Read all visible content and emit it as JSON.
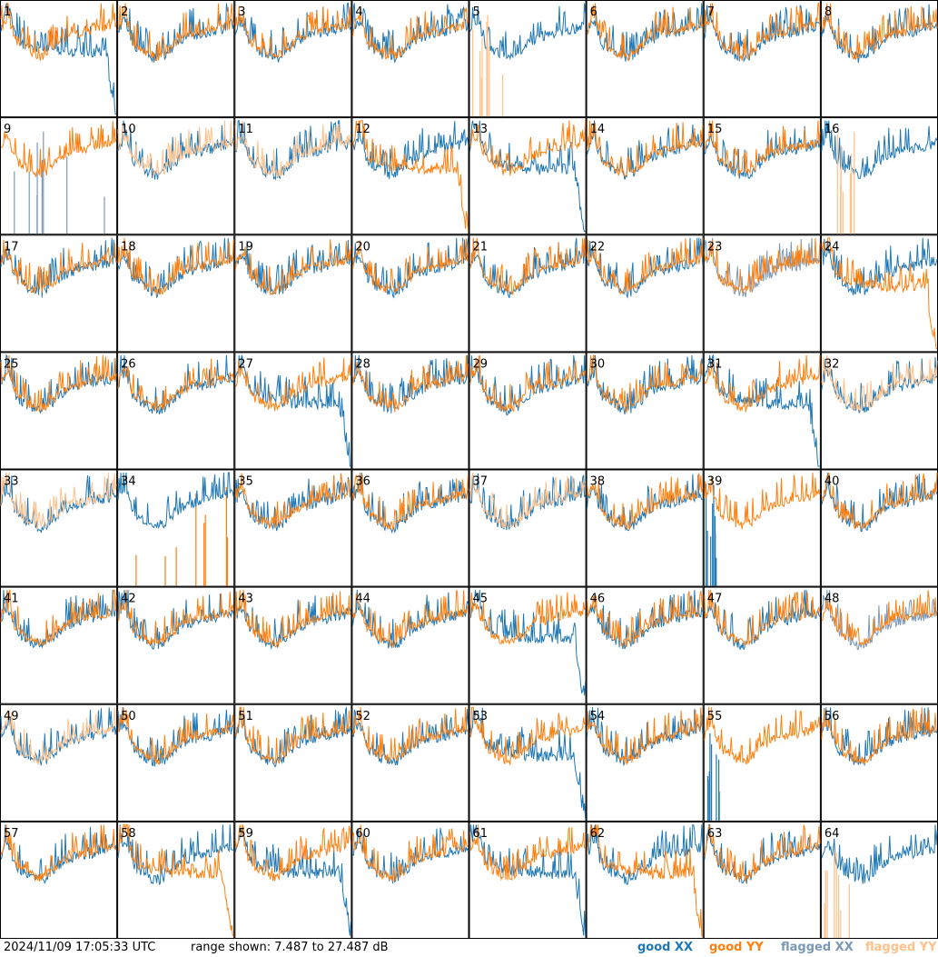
{
  "chart_data": {
    "type": "line",
    "grid": {
      "rows": 8,
      "cols": 8
    },
    "panels": [
      "1",
      "2",
      "3",
      "4",
      "5",
      "6",
      "7",
      "8",
      "9",
      "10",
      "11",
      "12",
      "13",
      "14",
      "15",
      "16",
      "17",
      "18",
      "19",
      "20",
      "21",
      "22",
      "23",
      "24",
      "25",
      "26",
      "27",
      "28",
      "29",
      "30",
      "31",
      "32",
      "33",
      "34",
      "35",
      "36",
      "37",
      "38",
      "39",
      "40",
      "41",
      "42",
      "43",
      "44",
      "45",
      "46",
      "47",
      "48",
      "49",
      "50",
      "51",
      "52",
      "53",
      "54",
      "55",
      "56",
      "57",
      "58",
      "59",
      "60",
      "61",
      "62",
      "63",
      "64"
    ],
    "range_db": [
      7.487,
      27.487
    ],
    "legend": [
      {
        "label": "good XX",
        "color": "#1f77b4"
      },
      {
        "label": "good YY",
        "color": "#ff7f0e"
      },
      {
        "label": "flagged XX",
        "color": "#7a99b8"
      },
      {
        "label": "flagged YY",
        "color": "#ffc08a"
      }
    ]
  },
  "footer": {
    "timestamp": "2024/11/09 17:05:33 UTC",
    "range_text": "range shown: 7.487 to 27.487 dB"
  }
}
